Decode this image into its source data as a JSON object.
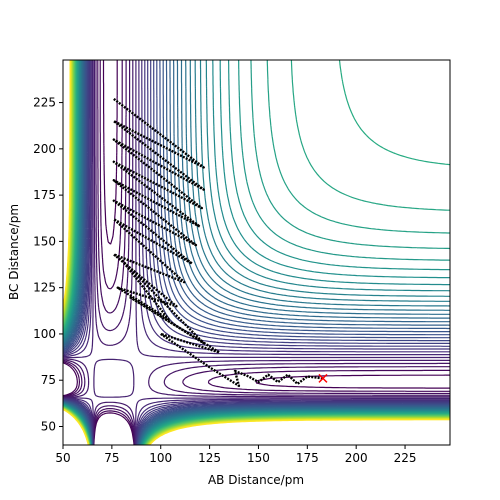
{
  "chart_data": {
    "type": "contour",
    "xlabel": "AB Distance/pm",
    "ylabel": "BC Distance/pm",
    "xlim": [
      50,
      248
    ],
    "ylim": [
      40,
      248
    ],
    "xticks": [
      50,
      75,
      100,
      125,
      150,
      175,
      200,
      225
    ],
    "yticks": [
      50,
      75,
      100,
      125,
      150,
      175,
      200,
      225
    ],
    "series": [
      {
        "name": "trajectory",
        "color": "#000000",
        "x": [
          76,
          122,
          76,
          122,
          76,
          121,
          76,
          120,
          76,
          118,
          76,
          116,
          76,
          112,
          76,
          108,
          78,
          104,
          80,
          122,
          84,
          130,
          100,
          125,
          140,
          138,
          145,
          150,
          155,
          160,
          165,
          170,
          175,
          183
        ],
        "values": [
          227,
          190,
          215,
          178,
          205,
          168,
          193,
          158,
          183,
          148,
          172,
          138,
          162,
          128,
          143,
          115,
          125,
          108,
          140,
          95,
          120,
          90,
          100,
          82,
          72,
          80,
          77,
          74,
          78,
          74,
          78,
          73,
          77,
          76
        ]
      }
    ],
    "marker": {
      "x": 183,
      "y": 76,
      "color": "#ff0000"
    }
  }
}
